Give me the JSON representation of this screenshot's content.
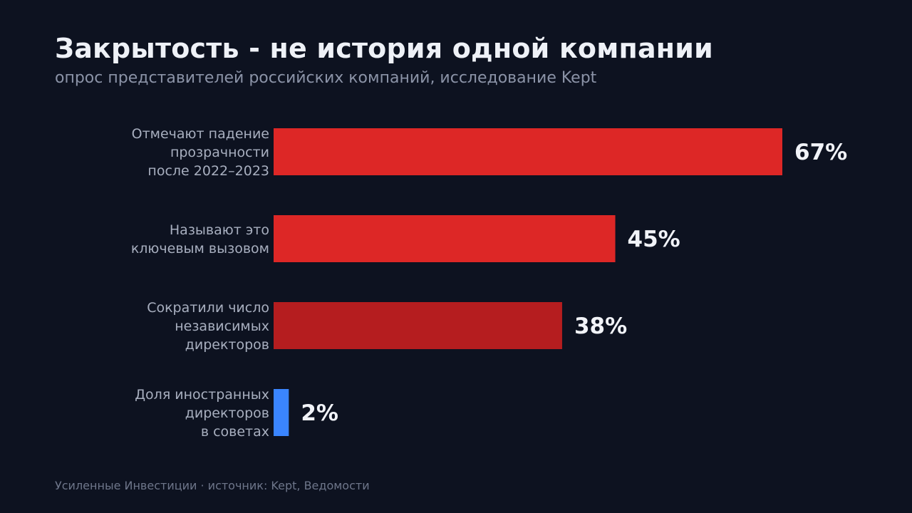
{
  "header": {
    "title": "Закрытость - не история одной компании",
    "subtitle": "опрос представителей российских компаний, исследование Kept"
  },
  "footer": {
    "text": "Усиленные Инвестиции · источник: Kept, Ведомости"
  },
  "chart_data": {
    "type": "bar",
    "orientation": "horizontal",
    "title": "Закрытость - не история одной компании",
    "subtitle": "опрос представителей российских компаний, исследование Kept",
    "unit": "%",
    "grid": false,
    "legend": "none",
    "xlim": [
      0,
      67
    ],
    "categories": [
      [
        "Отмечают падение",
        "прозрачности",
        "после 2022–2023"
      ],
      [
        "Называют это",
        "ключевым вызовом"
      ],
      [
        "Сократили число",
        "независимых",
        "директоров"
      ],
      [
        "Доля иностранных",
        "директоров",
        "в советах"
      ]
    ],
    "values": [
      67,
      45,
      38,
      2
    ],
    "value_labels": [
      "67%",
      "45%",
      "38%",
      "2%"
    ],
    "colors": [
      "#dd2726",
      "#dd2726",
      "#b51d1f",
      "#3a85ff"
    ]
  }
}
